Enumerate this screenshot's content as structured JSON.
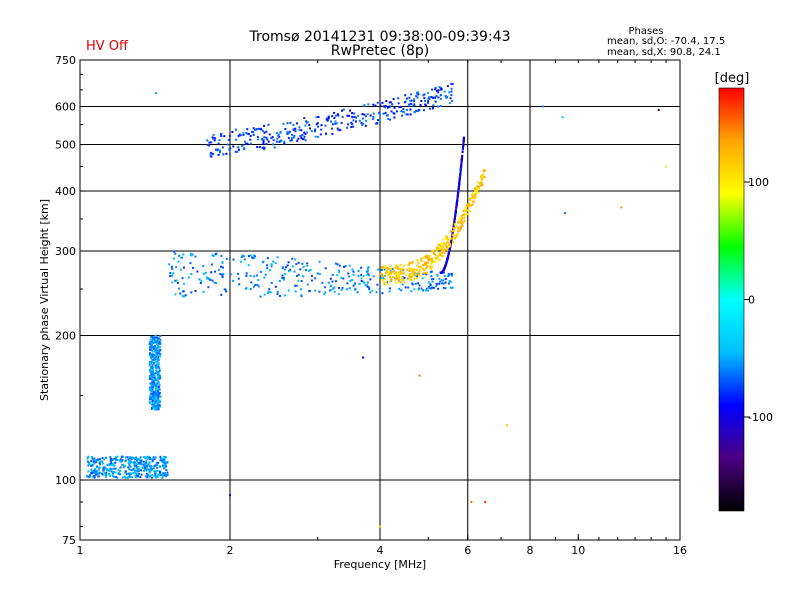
{
  "status_flag": "HV Off",
  "title_line1": "Tromsø 20141231 09:38:00-09:39:43",
  "title_line2": "RwPretec (8p)",
  "phases": {
    "heading": "Phases",
    "line_o": "mean, sd,O: -70.4, 17.5",
    "line_x": "mean, sd,X:  90.8, 24.1"
  },
  "colorbar": {
    "unit_label": "[deg]",
    "range": [
      -180,
      180
    ],
    "ticks": [
      {
        "value": 100,
        "label": "100"
      },
      {
        "value": 0,
        "label": "0"
      },
      {
        "value": -100,
        "label": "-100"
      }
    ],
    "colors": [
      "#000000",
      "#4b0082",
      "#0000ff",
      "#00bfff",
      "#00ffff",
      "#00ff00",
      "#ffff00",
      "#ffa500",
      "#ff0000"
    ]
  },
  "chart_data": {
    "type": "scatter",
    "xlabel": "Frequency [MHz]",
    "ylabel": "Stationary phase Virtual Height [km]",
    "xscale": "log",
    "yscale": "log",
    "xlim": [
      1,
      16
    ],
    "ylim": [
      75,
      750
    ],
    "xticks": [
      {
        "value": 1,
        "label": "1"
      },
      {
        "value": 2,
        "label": "2"
      },
      {
        "value": 4,
        "label": "4"
      },
      {
        "value": 6,
        "label": "6"
      },
      {
        "value": 8,
        "label": "8"
      },
      {
        "value": 10,
        "label": "10"
      },
      {
        "value": 16,
        "label": "16"
      }
    ],
    "xgrid": [
      2,
      4,
      6,
      8
    ],
    "yticks": [
      {
        "value": 75,
        "label": "75"
      },
      {
        "value": 100,
        "label": "100"
      },
      {
        "value": 200,
        "label": "200"
      },
      {
        "value": 300,
        "label": "300"
      },
      {
        "value": 400,
        "label": "400"
      },
      {
        "value": 500,
        "label": "500"
      },
      {
        "value": 600,
        "label": "600"
      },
      {
        "value": 750,
        "label": "750"
      }
    ],
    "ygrid": [
      100,
      200,
      300,
      400,
      500,
      600
    ],
    "color_by": "phase [deg]",
    "traces": [
      {
        "id": "low-trace",
        "x_range": [
          1.03,
          1.5
        ],
        "h_range": [
          101,
          112
        ],
        "phase": -55
      },
      {
        "id": "rising-e",
        "x_range": [
          1.38,
          1.45
        ],
        "h_range": [
          140,
          200
        ],
        "phase": -55
      },
      {
        "id": "f-lower-o",
        "x_range": [
          1.5,
          5.6
        ],
        "h_range": [
          235,
          300
        ],
        "phase": -60
      },
      {
        "id": "f-upper-o",
        "x_range": [
          1.8,
          5.6
        ],
        "h_range": [
          470,
          640
        ],
        "phase": -75
      },
      {
        "id": "o-cusp",
        "x_range": [
          5.3,
          5.9
        ],
        "h_range": [
          270,
          520
        ],
        "phase": -100
      },
      {
        "id": "x-trace",
        "x_range": [
          4.0,
          6.5
        ],
        "h_range": [
          250,
          430
        ],
        "phase": 115
      }
    ],
    "sporadic_points": [
      {
        "x": 1.42,
        "h": 640,
        "phase": -50
      },
      {
        "x": 2.0,
        "h": 93,
        "phase": -95
      },
      {
        "x": 3.7,
        "h": 180,
        "phase": -100
      },
      {
        "x": 4.8,
        "h": 165,
        "phase": 150
      },
      {
        "x": 6.1,
        "h": 90,
        "phase": 150
      },
      {
        "x": 6.5,
        "h": 90,
        "phase": 165
      },
      {
        "x": 4.0,
        "h": 80,
        "phase": 110
      },
      {
        "x": 7.2,
        "h": 130,
        "phase": 120
      },
      {
        "x": 9.3,
        "h": 570,
        "phase": -40
      },
      {
        "x": 14.5,
        "h": 590,
        "phase": -140
      },
      {
        "x": 9.4,
        "h": 360,
        "phase": -60
      },
      {
        "x": 12.2,
        "h": 370,
        "phase": 140
      },
      {
        "x": 15.0,
        "h": 450,
        "phase": 100
      },
      {
        "x": 8.5,
        "h": 600,
        "phase": -55
      }
    ]
  }
}
